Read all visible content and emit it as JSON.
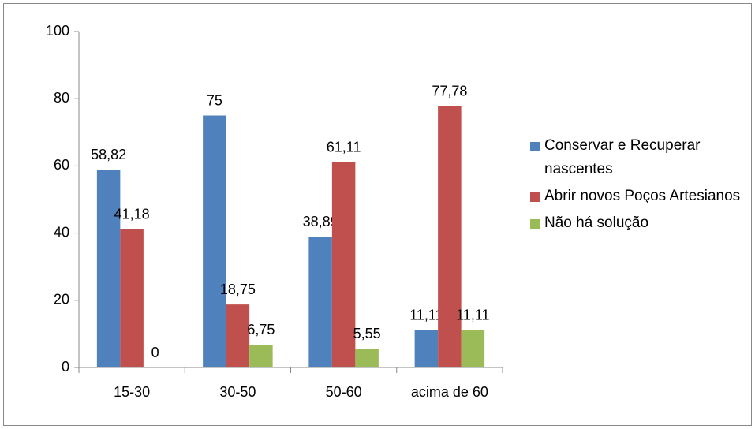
{
  "chart_data": {
    "type": "bar",
    "categories": [
      "15-30",
      "30-50",
      "50-60",
      "acima de 60"
    ],
    "series": [
      {
        "name": "Conservar e Recuperar nascentes",
        "color": "#4f81bd",
        "values": [
          58.82,
          75,
          38.89,
          11.11
        ],
        "value_labels": [
          "58,82",
          "75",
          "38,89",
          "11,11"
        ]
      },
      {
        "name": "Abrir novos Poços Artesianos",
        "color": "#c0504d",
        "values": [
          41.18,
          18.75,
          61.11,
          77.78
        ],
        "value_labels": [
          "41,18",
          "18,75",
          "61,11",
          "77,78"
        ]
      },
      {
        "name": "Não há solução",
        "color": "#9bbb59",
        "values": [
          0,
          6.75,
          5.55,
          11.11
        ],
        "value_labels": [
          "0",
          "6,75",
          "5,55",
          "11,11"
        ]
      }
    ],
    "ylim": [
      0,
      100
    ],
    "yticks": [
      0,
      20,
      40,
      60,
      80,
      100
    ],
    "legend": "right"
  }
}
